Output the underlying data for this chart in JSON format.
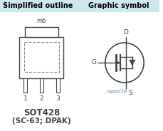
{
  "title_left": "Simplified outline",
  "title_right": "Graphic symbol",
  "title_bg": "#cce8f0",
  "title_color": "#000000",
  "body_bg": "#ffffff",
  "pkg_label": "SOT428",
  "pkg_sublabel": "(SC-63; DPAK)",
  "mb_label": "mb",
  "pin1_label": "1",
  "pin2_label": "2",
  "pin3_label": "3",
  "symbol_label": "mbb076",
  "D_label": "D",
  "G_label": "G",
  "S_label": "S",
  "line_color": "#444444",
  "dashed_color": "#888888",
  "symbol_color": "#5b7faa"
}
